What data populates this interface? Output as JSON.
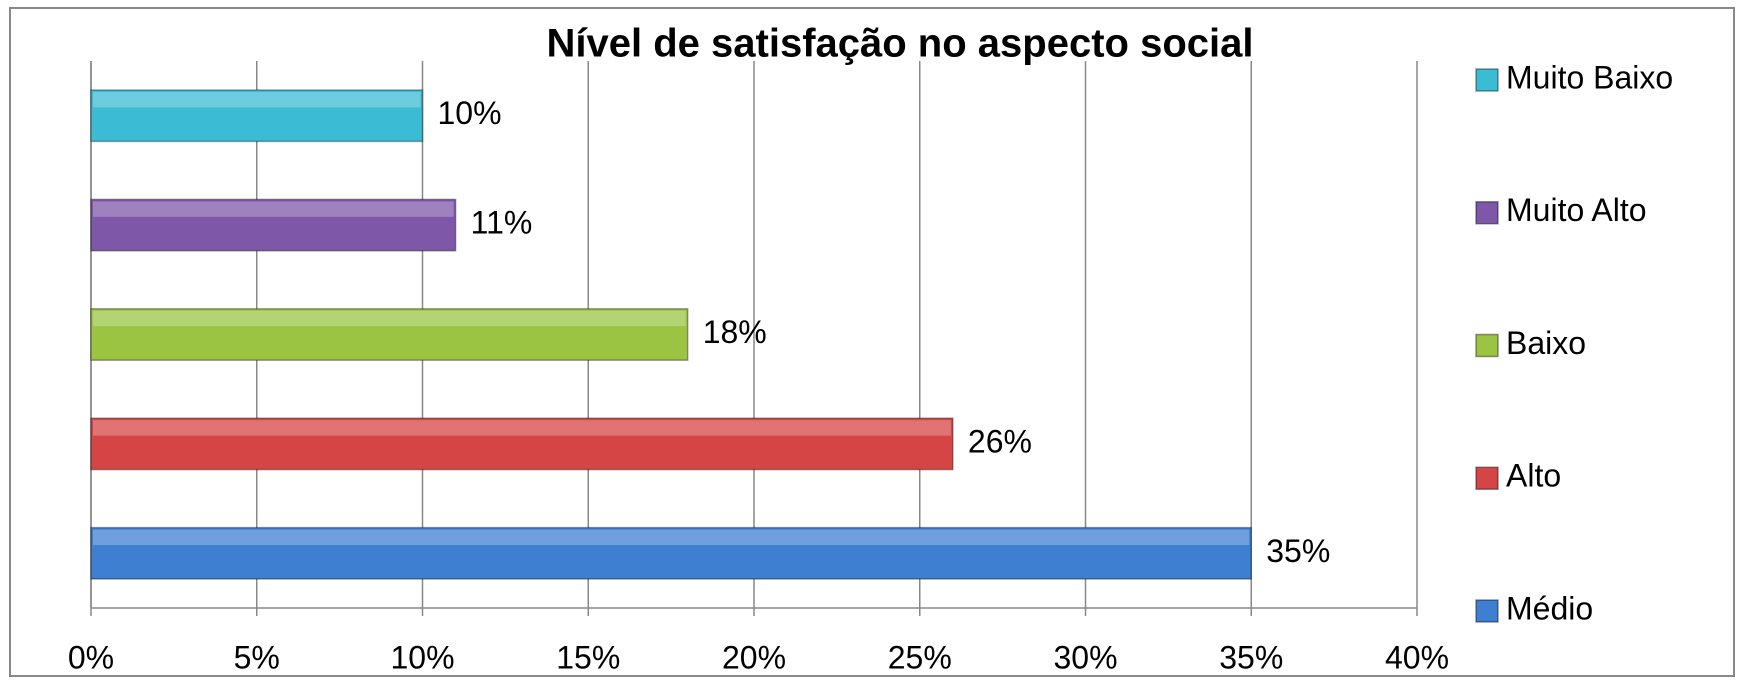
{
  "chart_data": {
    "type": "bar",
    "orientation": "horizontal",
    "title": "Nível de satisfação no aspecto social",
    "categories": [
      "Médio",
      "Alto",
      "Baixo",
      "Muito Alto",
      "Muito Baixo"
    ],
    "values": [
      35,
      26,
      18,
      11,
      10
    ],
    "value_labels": [
      "35%",
      "26%",
      "18%",
      "11%",
      "10%"
    ],
    "colors": [
      "#3f7fd1",
      "#d64545",
      "#9bc443",
      "#7e57a8",
      "#3cbcd4"
    ],
    "xlim": [
      0,
      40
    ],
    "xticks": [
      {
        "value": 0,
        "label": "0%"
      },
      {
        "value": 5,
        "label": "5%"
      },
      {
        "value": 10,
        "label": "10%"
      },
      {
        "value": 15,
        "label": "15%"
      },
      {
        "value": 20,
        "label": "20%"
      },
      {
        "value": 25,
        "label": "25%"
      },
      {
        "value": 30,
        "label": "30%"
      },
      {
        "value": 35,
        "label": "35%"
      },
      {
        "value": 40,
        "label": "40%"
      }
    ],
    "grid": true,
    "legend": "right"
  }
}
